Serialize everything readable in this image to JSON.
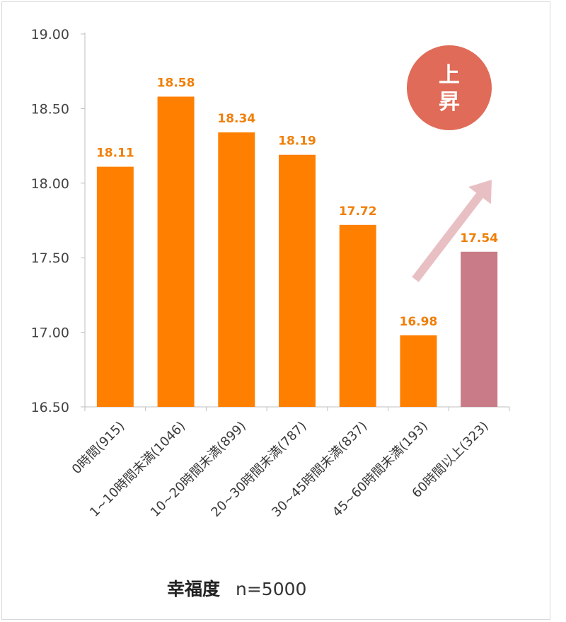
{
  "chart_data": {
    "type": "bar",
    "categories": [
      "0時間(915)",
      "1~10時間未満(1046)",
      "10~20時間未満(899)",
      "20~30時間未満(787)",
      "30~45時間未満(837)",
      "45~60時間未満(193)",
      "60時間以上(323)"
    ],
    "values": [
      18.11,
      18.58,
      18.34,
      18.19,
      17.72,
      16.98,
      17.54
    ],
    "value_labels": [
      "18.11",
      "18.58",
      "18.34",
      "18.19",
      "17.72",
      "16.98",
      "17.54"
    ],
    "yticks": [
      "16.50",
      "17.00",
      "17.50",
      "18.00",
      "18.50",
      "19.00"
    ],
    "ylim": [
      16.5,
      19.0
    ],
    "title": "",
    "xlabel": "",
    "ylabel": "",
    "grid": false,
    "colors": {
      "bar": "#ff8000",
      "highlight_bar": "#c97b87",
      "value_label": "#f07f09",
      "badge": "#e06b58",
      "arrow": "#e8c0c4"
    },
    "highlight_index": 6,
    "annotation": {
      "badge_text": "上昇",
      "arrow": "trend-up-arrow"
    }
  },
  "footer": {
    "measure": "幸福度",
    "sample": "n=5000"
  }
}
